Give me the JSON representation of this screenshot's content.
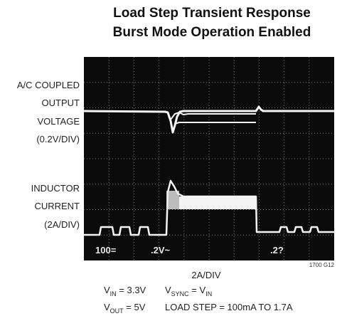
{
  "title": {
    "line1": "Load Step Transient Response",
    "line2": "Burst Mode Operation Enabled"
  },
  "left_labels": {
    "voltage": [
      "A/C COUPLED",
      "OUTPUT",
      "VOLTAGE",
      "(0.2V/DIV)"
    ],
    "current": [
      "INDUCTOR",
      "CURRENT",
      "(2A/DIV)"
    ]
  },
  "screen_labels": [
    "100=",
    ".2V~",
    ".2?"
  ],
  "figure_id": "1700 G12",
  "horizontal_scale": "2A/DIV",
  "conditions": {
    "vin": {
      "symbol": "V",
      "sub": "IN",
      "rest": " = 3.3V"
    },
    "vsync": {
      "symbol": "V",
      "sub": "SYNC",
      "rest": " = V",
      "sub2": "IN"
    },
    "vout": {
      "symbol": "V",
      "sub": "OUT",
      "rest": " = 5V"
    },
    "load": "LOAD STEP = 100mA TO 1.7A"
  }
}
